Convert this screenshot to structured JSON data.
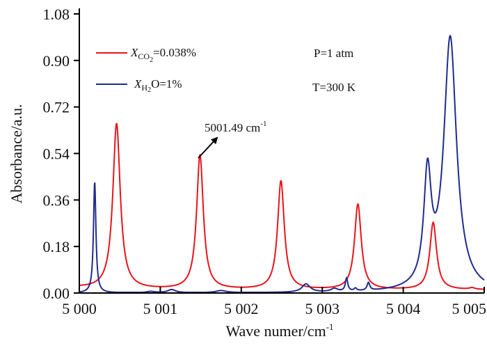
{
  "chart_data": {
    "type": "line",
    "title": "",
    "xlabel": "Wave numer/cm",
    "xlabel_sup": "-1",
    "ylabel": "Absorbance/a.u.",
    "xlim": [
      5000,
      5005
    ],
    "ylim": [
      0,
      1.08
    ],
    "grid": false,
    "x_ticks": [
      5000,
      5001,
      5002,
      5003,
      5004,
      5005
    ],
    "x_tick_labels": [
      "5 000",
      "5 001",
      "5 002",
      "5 003",
      "5 004",
      "5 005"
    ],
    "y_ticks": [
      0,
      0.18,
      0.36,
      0.54,
      0.72,
      0.9,
      1.08
    ],
    "y_tick_labels": [
      "0.00",
      "0.18",
      "0.36",
      "0.54",
      "0.72",
      "0.90",
      "1.08"
    ],
    "legend_position": "top-left",
    "series": [
      {
        "name": "X_CO2=0.038%",
        "legend_var": "X",
        "legend_sub": "CO",
        "legend_sub2": "2",
        "legend_rest": "=0.038%",
        "color": "#e8141b",
        "baseline": 0.012,
        "peaks": [
          {
            "x": 5000.46,
            "height": 0.64,
            "hwhm": 0.055
          },
          {
            "x": 5001.49,
            "height": 0.52,
            "hwhm": 0.05
          },
          {
            "x": 5002.49,
            "height": 0.42,
            "hwhm": 0.05
          },
          {
            "x": 5003.44,
            "height": 0.33,
            "hwhm": 0.05
          },
          {
            "x": 5004.37,
            "height": 0.26,
            "hwhm": 0.05
          },
          {
            "x": 5004.85,
            "height": 0.006,
            "hwhm": 0.04
          }
        ]
      },
      {
        "name": "X_H2O=1%",
        "legend_var": "X",
        "legend_sub": "H",
        "legend_sub2": "2",
        "legend_rest": "O=1%",
        "color": "#1f2b8f",
        "baseline": 0.0,
        "peaks": [
          {
            "x": 5000.19,
            "height": 0.43,
            "hwhm": 0.018
          },
          {
            "x": 5000.88,
            "height": 0.005,
            "hwhm": 0.06
          },
          {
            "x": 5001.14,
            "height": 0.012,
            "hwhm": 0.06
          },
          {
            "x": 5001.75,
            "height": 0.008,
            "hwhm": 0.08
          },
          {
            "x": 5002.8,
            "height": 0.032,
            "hwhm": 0.06
          },
          {
            "x": 5003.15,
            "height": 0.012,
            "hwhm": 0.05
          },
          {
            "x": 5003.3,
            "height": 0.05,
            "hwhm": 0.018
          },
          {
            "x": 5003.41,
            "height": 0.01,
            "hwhm": 0.02
          },
          {
            "x": 5003.57,
            "height": 0.03,
            "hwhm": 0.02
          },
          {
            "x": 5004.3,
            "height": 0.42,
            "hwhm": 0.055
          },
          {
            "x": 5004.58,
            "height": 0.98,
            "hwhm": 0.095
          }
        ]
      }
    ],
    "annotations": [
      {
        "text": "5001.49 cm",
        "sup": "-1",
        "points_to_x": 5001.49,
        "points_to_y": 0.52,
        "arrow": true
      },
      {
        "text": "P=1 atm"
      },
      {
        "text": "T=300 K"
      }
    ]
  }
}
